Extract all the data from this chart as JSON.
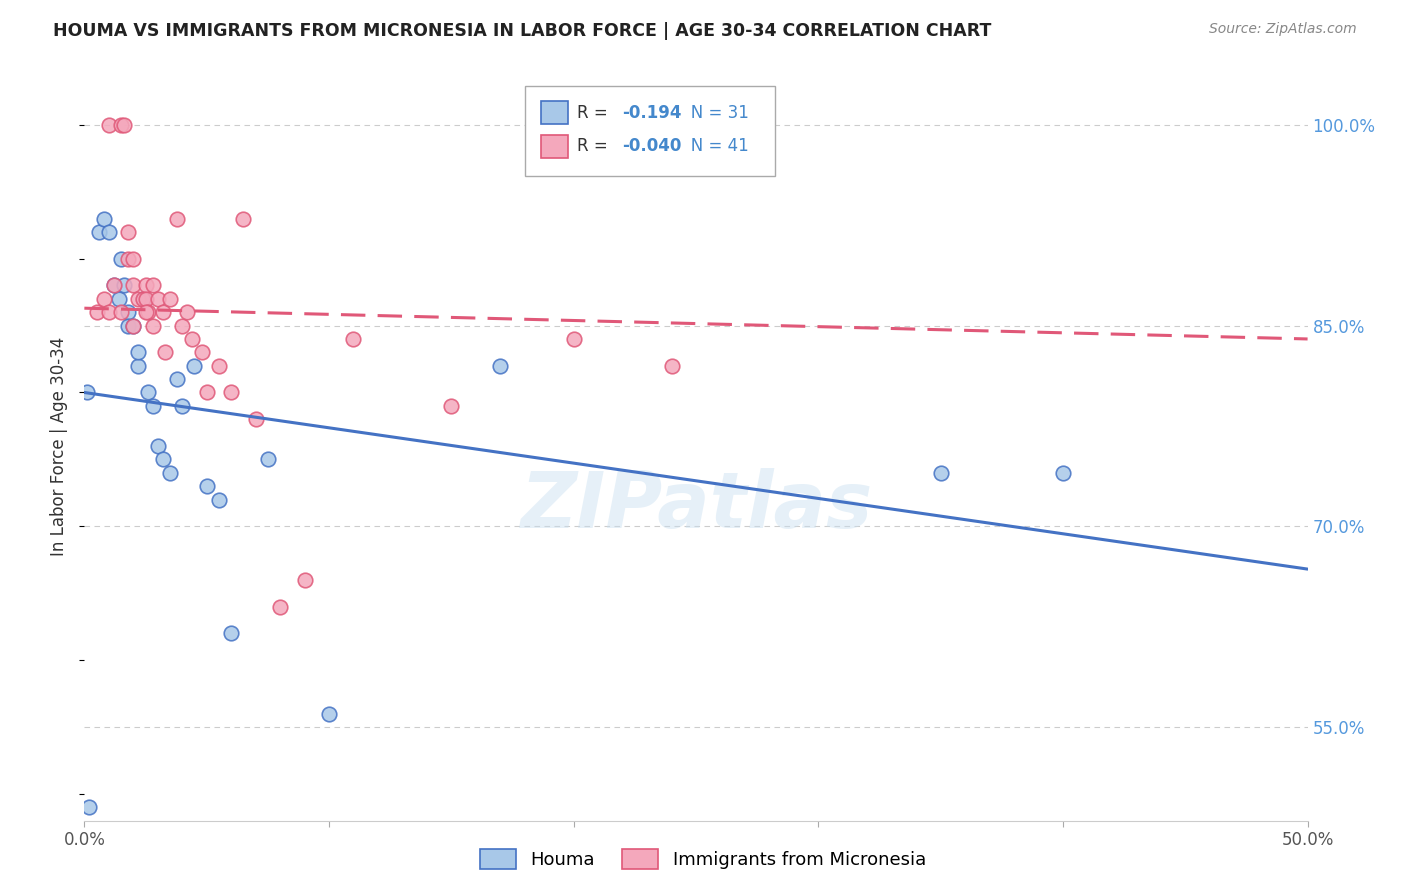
{
  "title": "HOUMA VS IMMIGRANTS FROM MICRONESIA IN LABOR FORCE | AGE 30-34 CORRELATION CHART",
  "source": "Source: ZipAtlas.com",
  "ylabel": "In Labor Force | Age 30-34",
  "xlim": [
    0.0,
    0.5
  ],
  "ylim": [
    0.48,
    1.04
  ],
  "grid_color": "#cccccc",
  "background_color": "#ffffff",
  "houma_color": "#a8c8e8",
  "micronesia_color": "#f4a8bc",
  "houma_line_color": "#4472c4",
  "micronesia_line_color": "#e05878",
  "legend_label_houma": "Houma",
  "legend_label_micro": "Immigrants from Micronesia",
  "R_houma": "-0.194",
  "N_houma": "31",
  "R_micro": "-0.040",
  "N_micro": "41",
  "houma_x": [
    0.001,
    0.006,
    0.008,
    0.01,
    0.012,
    0.014,
    0.015,
    0.016,
    0.018,
    0.018,
    0.02,
    0.022,
    0.022,
    0.024,
    0.026,
    0.028,
    0.03,
    0.032,
    0.035,
    0.038,
    0.04,
    0.045,
    0.05,
    0.055,
    0.06,
    0.075,
    0.1,
    0.17,
    0.35,
    0.4,
    0.002
  ],
  "houma_y": [
    0.8,
    0.92,
    0.93,
    0.92,
    0.88,
    0.87,
    0.9,
    0.88,
    0.86,
    0.85,
    0.85,
    0.82,
    0.83,
    0.87,
    0.8,
    0.79,
    0.76,
    0.75,
    0.74,
    0.81,
    0.79,
    0.82,
    0.73,
    0.72,
    0.62,
    0.75,
    0.56,
    0.82,
    0.74,
    0.74,
    0.49
  ],
  "micro_x": [
    0.01,
    0.015,
    0.016,
    0.018,
    0.018,
    0.02,
    0.02,
    0.022,
    0.024,
    0.025,
    0.025,
    0.026,
    0.028,
    0.028,
    0.03,
    0.032,
    0.033,
    0.035,
    0.038,
    0.04,
    0.042,
    0.044,
    0.048,
    0.05,
    0.055,
    0.06,
    0.065,
    0.07,
    0.08,
    0.09,
    0.11,
    0.15,
    0.2,
    0.24,
    0.005,
    0.008,
    0.01,
    0.012,
    0.015,
    0.02,
    0.025
  ],
  "micro_y": [
    1.0,
    1.0,
    1.0,
    0.92,
    0.9,
    0.9,
    0.88,
    0.87,
    0.87,
    0.88,
    0.87,
    0.86,
    0.88,
    0.85,
    0.87,
    0.86,
    0.83,
    0.87,
    0.93,
    0.85,
    0.86,
    0.84,
    0.83,
    0.8,
    0.82,
    0.8,
    0.93,
    0.78,
    0.64,
    0.66,
    0.84,
    0.79,
    0.84,
    0.82,
    0.86,
    0.87,
    0.86,
    0.88,
    0.86,
    0.85,
    0.86
  ],
  "houma_line_x0": 0.0,
  "houma_line_y0": 0.8,
  "houma_line_x1": 0.5,
  "houma_line_y1": 0.668,
  "micro_line_x0": 0.0,
  "micro_line_y0": 0.863,
  "micro_line_x1": 0.5,
  "micro_line_y1": 0.84,
  "watermark": "ZIPatlas",
  "marker_size": 110
}
